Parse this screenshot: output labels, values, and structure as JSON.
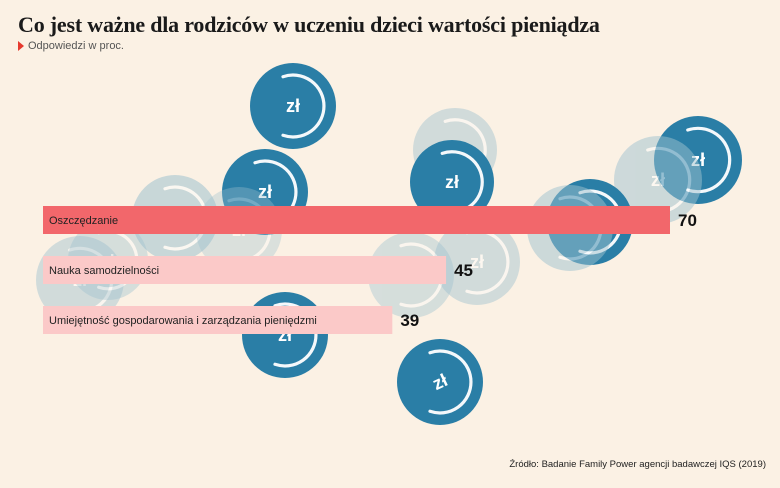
{
  "title": "Co jest ważne dla rodziców w uczeniu dzieci wartości pieniądza",
  "subtitle": "Odpowiedzi w proc.",
  "source": "Źródło: Badanie Family Power agencji badawczej IQS (2019)",
  "coin_label": "zł",
  "colors": {
    "background": "#fbf1e4",
    "bar_highlight": "#f2676b",
    "bar_regular": "#fbc9c8",
    "coin_dark": "#2a7ea6",
    "coin_light": "#9fc2cf",
    "marker": "#e63a2e"
  },
  "chart_data": {
    "type": "bar",
    "orientation": "horizontal",
    "categories": [
      "Oszczędzanie",
      "Nauka samodzielności",
      "Umiejętność gospodarowania i zarządzania pieniędzmi"
    ],
    "values": [
      70,
      45,
      39
    ],
    "highlight_index": 0,
    "xlim": [
      0,
      70
    ],
    "grid": false,
    "legend": "none"
  }
}
